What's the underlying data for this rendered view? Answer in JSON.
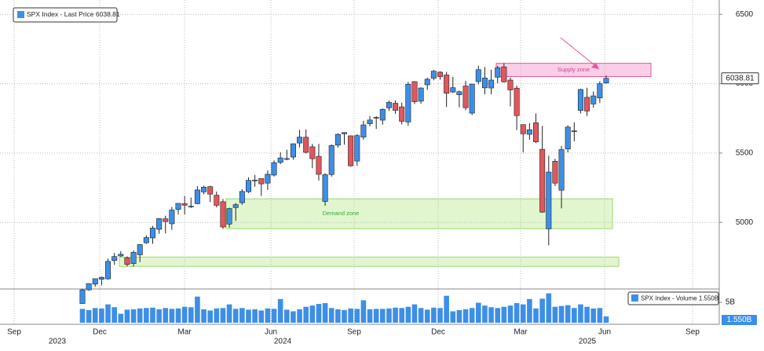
{
  "chart_data": [
    {
      "type": "candlestick",
      "legend": "SPX Index - Last Price",
      "last_price": 6038.81,
      "ylim": [
        4520,
        6575
      ],
      "yticks": [
        5000,
        5500,
        6000,
        6500
      ],
      "grid": true,
      "up_color": "#3d8fe6",
      "down_color": "#e0575e",
      "months": [
        "Sep",
        "Dec",
        "Mar",
        "Jun",
        "Sep",
        "Dec",
        "Mar",
        "Jun",
        "Sep"
      ],
      "years": [
        "2023",
        "2024",
        "2025"
      ],
      "zones": [
        {
          "label": "Supply zone",
          "low": 6051,
          "high": 6147,
          "color": "#f9c6e0"
        },
        {
          "label": "Demand zone",
          "low": 4955,
          "high": 5170,
          "color": "#dcf5c6"
        },
        {
          "low": 4683,
          "high": 4750,
          "color": "#dcf5c6"
        }
      ],
      "open": [
        4415,
        4514,
        4555,
        4590,
        4593,
        4725,
        4758,
        4745,
        4703,
        4766,
        4853,
        4888,
        4950,
        5026,
        4990,
        5094,
        5135,
        5114,
        5135,
        5220,
        5258,
        5196,
        5149,
        4988,
        5107,
        5142,
        5221,
        5305,
        5316,
        5283,
        5341,
        5432,
        5459,
        5471,
        5572,
        5614,
        5545,
        5476,
        5151,
        5345,
        5557,
        5638,
        5624,
        5442,
        5615,
        5711,
        5757,
        5737,
        5826,
        5859,
        5833,
        5724,
        6015,
        5874,
        5992,
        6040,
        6083,
        6063,
        5940,
        5920,
        5983,
        5788,
        6015,
        5970,
        5969,
        6047,
        6121,
        6026,
        5968,
        5705,
        5635,
        5718,
        5527,
        4953,
        5441,
        5232,
        5529,
        5655,
        5807,
        5902,
        5854,
        5897,
        6005
      ],
      "high": [
        4521,
        4560,
        4595,
        4610,
        4739,
        4779,
        4793,
        4755,
        4798,
        4842,
        4907,
        4975,
        5031,
        5048,
        5111,
        5140,
        5190,
        5179,
        5261,
        5265,
        5264,
        5222,
        5169,
        5106,
        5140,
        5239,
        5325,
        5342,
        5315,
        5375,
        5447,
        5505,
        5524,
        5570,
        5667,
        5670,
        5566,
        5566,
        5355,
        5563,
        5643,
        5651,
        5627,
        5636,
        5733,
        5767,
        5766,
        5822,
        5879,
        5878,
        5863,
        6013,
        6018,
        5973,
        6044,
        6099,
        6089,
        6085,
        6049,
        5950,
        6021,
        5998,
        6129,
        6120,
        6101,
        6128,
        6147,
        6044,
        5986,
        5706,
        5715,
        5786,
        5695,
        5481,
        5459,
        5551,
        5700,
        5721,
        5964,
        5971,
        5944,
        6017,
        6059
      ],
      "low": [
        4412,
        4507,
        4537,
        4546,
        4587,
        4694,
        4751,
        4682,
        4682,
        4714,
        4845,
        4846,
        4918,
        4920,
        4946,
        5057,
        5057,
        5104,
        5131,
        5203,
        5146,
        5108,
        4953,
        4962,
        5011,
        5127,
        5212,
        5257,
        5191,
        5234,
        5331,
        5420,
        5448,
        5452,
        5540,
        5497,
        5390,
        5302,
        5120,
        5330,
        5540,
        5560,
        5402,
        5407,
        5596,
        5693,
        5674,
        5704,
        5804,
        5783,
        5706,
        5696,
        5853,
        5855,
        5956,
        6024,
        6028,
        5832,
        5933,
        5829,
        5809,
        5774,
        5995,
        5923,
        5923,
        6003,
        6009,
        5837,
        5666,
        5505,
        5597,
        5572,
        5069,
        4835,
        5262,
        5101,
        5505,
        5585,
        5786,
        5767,
        5827,
        5861,
        6000
      ],
      "close": [
        4514,
        4559,
        4594,
        4604,
        4719,
        4754,
        4770,
        4697,
        4784,
        4840,
        4891,
        4959,
        5027,
        5006,
        5089,
        5137,
        5124,
        5117,
        5234,
        5254,
        5204,
        5123,
        4967,
        5100,
        5128,
        5223,
        5303,
        5305,
        5278,
        5347,
        5431,
        5465,
        5460,
        5567,
        5615,
        5505,
        5459,
        5347,
        5344,
        5554,
        5635,
        5648,
        5408,
        5626,
        5703,
        5738,
        5751,
        5815,
        5865,
        5808,
        5729,
        5996,
        5870,
        5969,
        6032,
        6090,
        6051,
        5931,
        5971,
        5942,
        5827,
        5997,
        6101,
        6041,
        6026,
        6115,
        6013,
        5955,
        5770,
        5639,
        5668,
        5581,
        5074,
        5363,
        5283,
        5525,
        5687,
        5660,
        5958,
        5803,
        5912,
        6000,
        6038.81
      ]
    },
    {
      "type": "bar",
      "legend": "SPX Index - Volume",
      "last_label": "1.550B",
      "color": "#3d8fe6",
      "ylim": [
        0,
        7.5
      ],
      "yticks": [
        {
          "value": 5,
          "label": "5B"
        }
      ],
      "values": [
        3.4,
        3.1,
        3.6,
        3.5,
        4.5,
        3.8,
        2.2,
        3.2,
        3.3,
        3.5,
        3.6,
        3.7,
        3.3,
        3.6,
        3.4,
        3.5,
        3.9,
        3.8,
        6.4,
        3.3,
        3.0,
        3.5,
        3.6,
        4.5,
        3.4,
        3.6,
        3.2,
        3.3,
        3.0,
        3.5,
        3.4,
        5.8,
        3.2,
        2.8,
        3.3,
        3.9,
        4.2,
        4.6,
        4.8,
        3.6,
        3.3,
        3.1,
        3.5,
        3.4,
        5.5,
        3.3,
        3.4,
        3.4,
        3.5,
        3.7,
        3.6,
        3.9,
        4.5,
        3.6,
        3.2,
        3.7,
        3.6,
        6.6,
        2.8,
        3.1,
        3.3,
        3.6,
        4.9,
        4.2,
        3.8,
        3.6,
        3.9,
        4.2,
        4.8,
        4.5,
        5.8,
        3.5,
        5.9,
        7.2,
        3.9,
        4.1,
        4.3,
        3.6,
        4.5,
        3.9,
        3.5,
        3.6,
        1.55
      ]
    }
  ]
}
